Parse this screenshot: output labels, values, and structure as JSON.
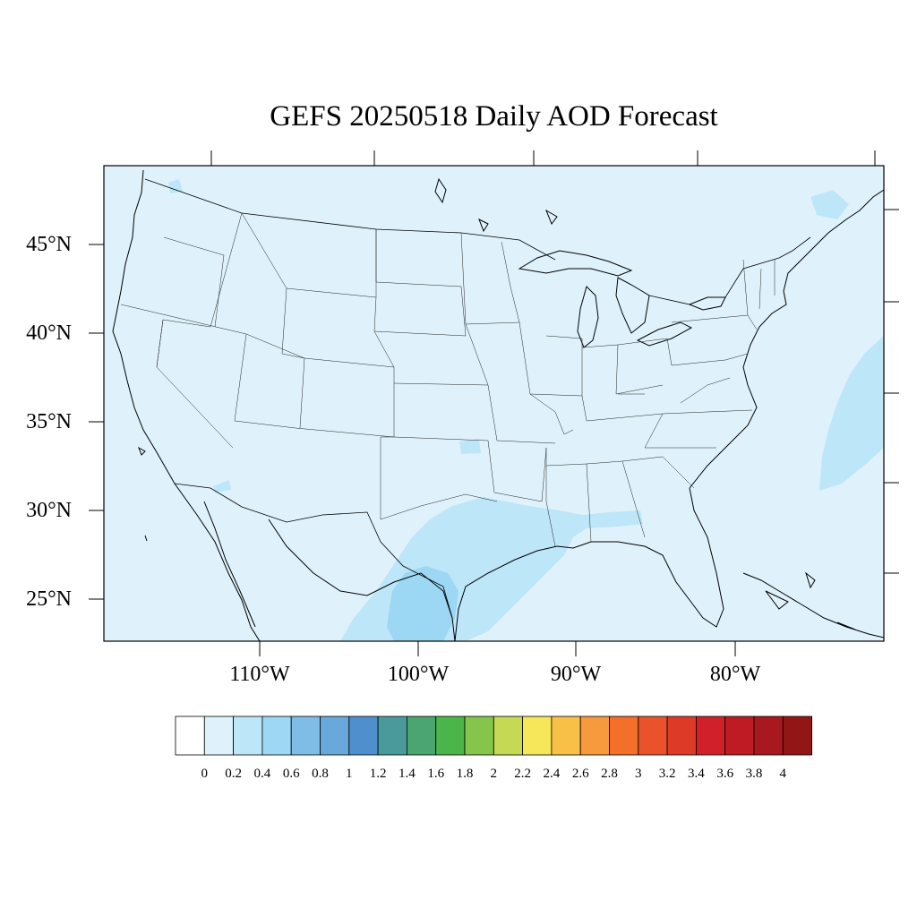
{
  "title": "GEFS 20250518 Daily AOD Forecast",
  "map": {
    "projection": "lambert-conformal",
    "region": "Contiguous United States",
    "lat_labels": [
      "45°N",
      "40°N",
      "35°N",
      "30°N",
      "25°N"
    ],
    "lon_labels": [
      "110°W",
      "100°W",
      "90°W",
      "80°W"
    ],
    "field": "aod",
    "background_level_color": "#dff2fb",
    "features": [
      "state-boundaries",
      "coastlines",
      "country-border",
      "great-lakes"
    ]
  },
  "colorbar": {
    "labels": [
      "0",
      "0.2",
      "0.4",
      "0.6",
      "0.8",
      "1",
      "1.2",
      "1.4",
      "1.6",
      "1.8",
      "2",
      "2.2",
      "2.4",
      "2.6",
      "2.8",
      "3",
      "3.2",
      "3.4",
      "3.6",
      "3.8",
      "4"
    ],
    "colors": [
      "#ffffff",
      "#dff2fb",
      "#bde6f8",
      "#9cd7f3",
      "#80bde6",
      "#68a8db",
      "#4f8fce",
      "#4a9a9c",
      "#4aa571",
      "#4bb54a",
      "#86c54c",
      "#c5d955",
      "#f5e65a",
      "#f8c047",
      "#f79a3d",
      "#f36f2a",
      "#e9522b",
      "#dd3a28",
      "#d0212a",
      "#bf1b25",
      "#a7191e",
      "#931617"
    ]
  }
}
